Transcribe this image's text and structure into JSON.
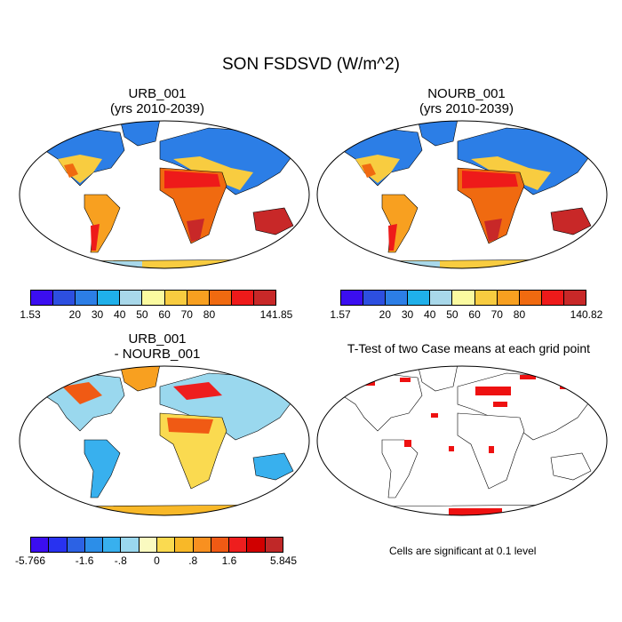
{
  "title": "SON FSDSVD (W/m^2)",
  "panels": [
    {
      "title_line1": "URB_001",
      "title_line2": "(yrs 2010-2039)"
    },
    {
      "title_line1": "NOURB_001",
      "title_line2": "(yrs 2010-2039)"
    },
    {
      "title_line1": "URB_001",
      "title_line2": "- NOURB_001"
    },
    {
      "title_line1": "T-Test of two Case means at each grid point",
      "title_line2": ""
    }
  ],
  "colorbars": {
    "urb": {
      "colors": [
        "#3b0ef0",
        "#2d4fe0",
        "#2c7ee6",
        "#1fb0ea",
        "#a8d8ea",
        "#fafaa0",
        "#f8cc40",
        "#f8a020",
        "#f06a10",
        "#ee1a1a",
        "#c82828"
      ],
      "labels": [
        "1.53",
        "20",
        "30",
        "40",
        "50",
        "60",
        "70",
        "80",
        "141.85"
      ]
    },
    "nourb": {
      "colors": [
        "#3b0ef0",
        "#2d4fe0",
        "#2c7ee6",
        "#1fb0ea",
        "#a8d8ea",
        "#fafaa0",
        "#f8cc40",
        "#f8a020",
        "#f06a10",
        "#ee1a1a",
        "#c82828"
      ],
      "labels": [
        "1.57",
        "20",
        "30",
        "40",
        "50",
        "60",
        "70",
        "80",
        "140.82"
      ]
    },
    "diff": {
      "colors": [
        "#3b0ef0",
        "#2832f0",
        "#2c62e4",
        "#2c8ee8",
        "#38b0ee",
        "#9ad8ee",
        "#fafac0",
        "#fada50",
        "#f8b828",
        "#f89020",
        "#f05a14",
        "#ee1e1e",
        "#d00000",
        "#c02828"
      ],
      "labels": [
        "-5.766",
        "-1.6",
        "-.8",
        "0",
        ".8",
        "1.6",
        "5.845"
      ]
    }
  },
  "significance_note": "Cells are significant at 0.1 level",
  "colors": {
    "significant": "#ee1111",
    "land_outline": "#000000"
  }
}
